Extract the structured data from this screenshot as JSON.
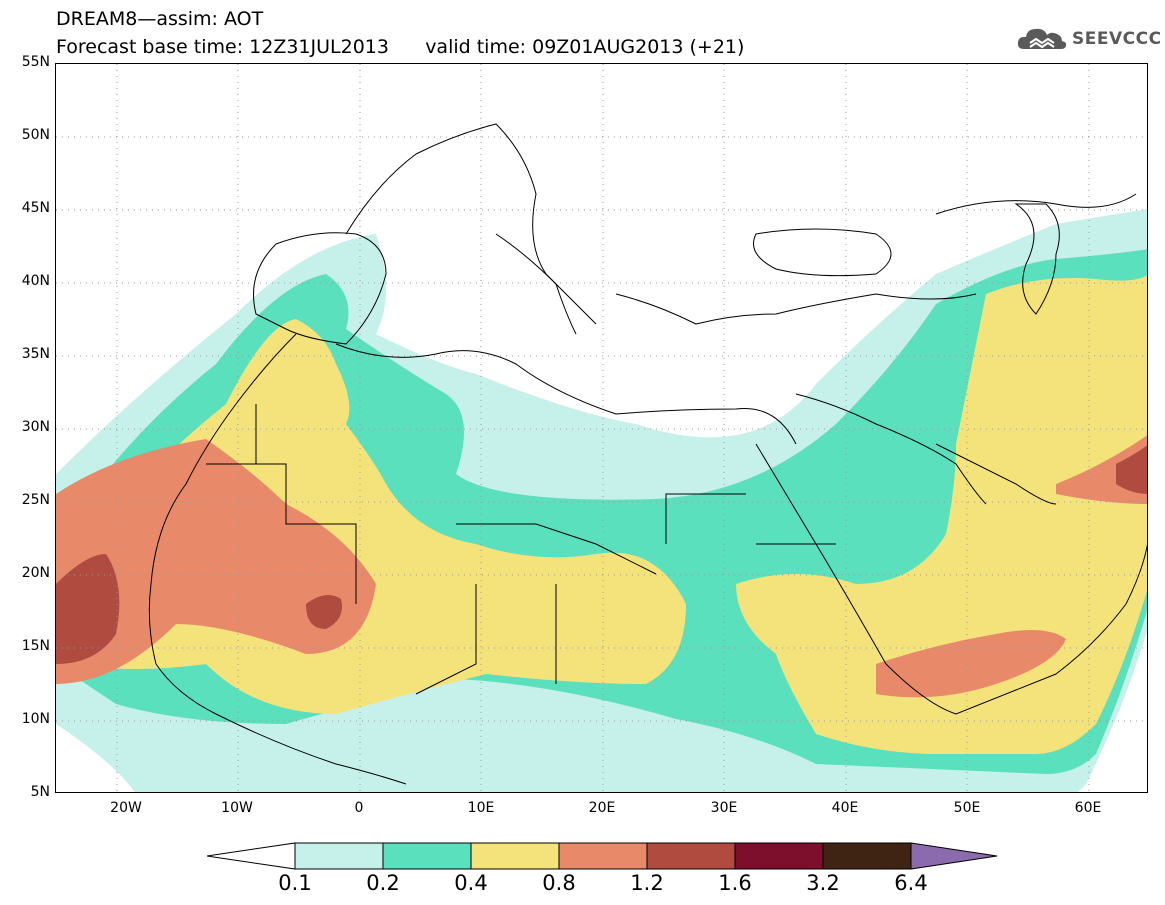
{
  "title": {
    "line1": "DREAM8—assim: AOT",
    "line2": "Forecast base time: 12Z31JUL2013      valid time: 09Z01AUG2013 (+21)"
  },
  "logo": {
    "icon": "cloud-logo-icon",
    "text": "SEEVCCC"
  },
  "axes": {
    "lat_labels": [
      "55N",
      "50N",
      "45N",
      "40N",
      "35N",
      "30N",
      "25N",
      "20N",
      "15N",
      "10N",
      "5N"
    ],
    "lon_labels": [
      "20W",
      "10W",
      "0",
      "10E",
      "20E",
      "30E",
      "40E",
      "50E",
      "60E"
    ],
    "lon_range": [
      -25,
      65
    ],
    "lat_range": [
      5,
      55
    ]
  },
  "colorbar": {
    "labels": [
      "0.1",
      "0.2",
      "0.4",
      "0.8",
      "1.2",
      "1.6",
      "3.2",
      "6.4"
    ],
    "colors": [
      "#ffffff",
      "#c6f0ea",
      "#5be0bd",
      "#f4e27a",
      "#e8896a",
      "#b04b40",
      "#7d0f2c",
      "#3f2414",
      "#8b6aae"
    ]
  },
  "chart_data": {
    "type": "heatmap",
    "variable": "AOT",
    "levels": [
      0.1,
      0.2,
      0.4,
      0.8,
      1.2,
      1.6,
      3.2,
      6.4
    ]
  }
}
